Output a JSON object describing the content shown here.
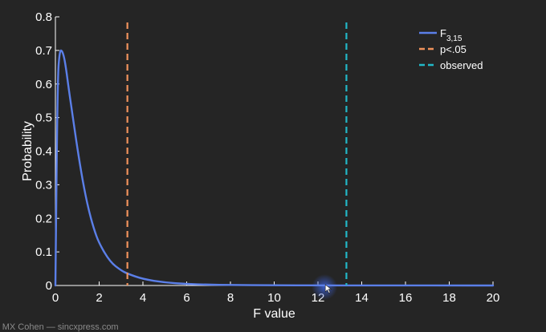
{
  "chart_data": {
    "type": "line",
    "title": "",
    "xlabel": "F value",
    "ylabel": "Probability",
    "xlim": [
      0,
      20
    ],
    "ylim": [
      0,
      0.8
    ],
    "x_ticks": [
      0,
      2,
      4,
      6,
      8,
      10,
      12,
      14,
      16,
      18,
      20
    ],
    "y_ticks": [
      0,
      0.1,
      0.2,
      0.3,
      0.4,
      0.5,
      0.6,
      0.7,
      0.8
    ],
    "grid": false,
    "legend_position": "top-right",
    "series": [
      {
        "name": "F",
        "name_subscript": "3,15",
        "style": "solid",
        "color": "#5b7fe8",
        "x": [
          0,
          0.1,
          0.2,
          0.3,
          0.4,
          0.5,
          0.6,
          0.8,
          1.0,
          1.25,
          1.5,
          1.75,
          2.0,
          2.5,
          3.0,
          3.3,
          4.0,
          5.0,
          6.0,
          7.0,
          8.0,
          10.0,
          12.0,
          14.0,
          16.0,
          18.0,
          20.0
        ],
        "y": [
          0,
          0.62,
          0.7,
          0.7,
          0.68,
          0.64,
          0.59,
          0.5,
          0.41,
          0.31,
          0.23,
          0.17,
          0.125,
          0.07,
          0.045,
          0.035,
          0.019,
          0.009,
          0.0045,
          0.0025,
          0.0015,
          0.0006,
          0.0003,
          0.0001,
          0.0001,
          0.0,
          0.0
        ]
      },
      {
        "name": "p<.05",
        "style": "dashed",
        "color": "#f0925c",
        "x": [
          3.29,
          3.29
        ],
        "y": [
          0,
          0.8
        ]
      },
      {
        "name": "observed",
        "style": "dashed",
        "color": "#22b8c8",
        "x": [
          13.3,
          13.3
        ],
        "y": [
          0,
          0.8
        ]
      }
    ]
  },
  "cursor_highlight_color": "#3a5cc8",
  "watermark": "- MX Cohen — sincxpress.com"
}
